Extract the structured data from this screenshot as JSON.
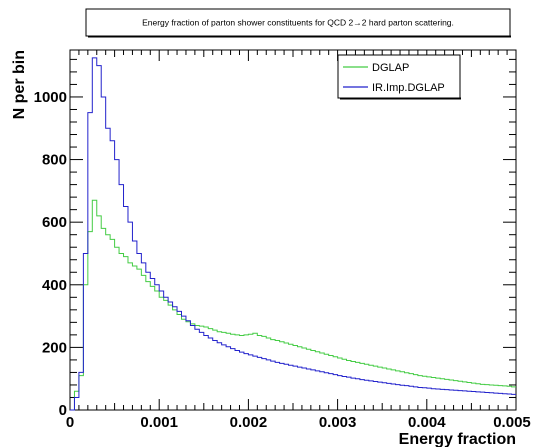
{
  "chart_data": {
    "type": "line",
    "title": "Energy fraction of parton shower constituents for QCD 2→2 hard parton scattering.",
    "xlabel": "Energy fraction",
    "ylabel": "N per bin",
    "xlim": [
      0,
      0.005
    ],
    "ylim": [
      0,
      1150
    ],
    "x_ticks": [
      "0",
      "0.001",
      "0.002",
      "0.003",
      "0.004",
      "0.005"
    ],
    "y_ticks": [
      "0",
      "200",
      "400",
      "600",
      "800",
      "1000"
    ],
    "legend_position": "top-right",
    "bin_width": 5e-05,
    "series": [
      {
        "name": "DGLAP",
        "color": "#44cc44",
        "values": [
          0,
          60,
          110,
          400,
          570,
          670,
          620,
          580,
          560,
          545,
          520,
          500,
          490,
          470,
          460,
          450,
          430,
          410,
          395,
          380,
          360,
          350,
          335,
          320,
          305,
          290,
          282,
          275,
          270,
          268,
          265,
          260,
          255,
          250,
          248,
          245,
          242,
          240,
          238,
          240,
          242,
          245,
          238,
          235,
          230,
          225,
          222,
          218,
          214,
          210,
          206,
          202,
          198,
          194,
          190,
          186,
          182,
          178,
          174,
          170,
          166,
          162,
          158,
          155,
          152,
          149,
          146,
          143,
          140,
          137,
          134,
          131,
          128,
          125,
          122,
          119,
          116,
          113,
          110,
          108,
          106,
          104,
          102,
          100,
          98,
          96,
          94,
          92,
          90,
          88,
          86,
          84,
          82,
          81,
          80,
          79,
          78,
          77,
          76,
          74
        ]
      },
      {
        "name": "IR.Imp.DGLAP",
        "color": "#2222cc",
        "values": [
          0,
          40,
          120,
          500,
          950,
          1125,
          1100,
          1000,
          900,
          860,
          800,
          720,
          650,
          600,
          540,
          500,
          470,
          440,
          420,
          400,
          380,
          360,
          345,
          330,
          315,
          300,
          285,
          270,
          258,
          248,
          238,
          230,
          222,
          215,
          208,
          202,
          196,
          190,
          185,
          180,
          176,
          172,
          168,
          164,
          160,
          156,
          152,
          149,
          146,
          143,
          140,
          137,
          134,
          131,
          128,
          125,
          122,
          119,
          116,
          113,
          110,
          107,
          105,
          102,
          100,
          97,
          95,
          93,
          91,
          89,
          87,
          85,
          83,
          81,
          79,
          78,
          76,
          74,
          72,
          71,
          70,
          68,
          67,
          66,
          65,
          64,
          63,
          62,
          61,
          60,
          59,
          58,
          57,
          56,
          55,
          54,
          53,
          52,
          51,
          50
        ]
      }
    ]
  }
}
